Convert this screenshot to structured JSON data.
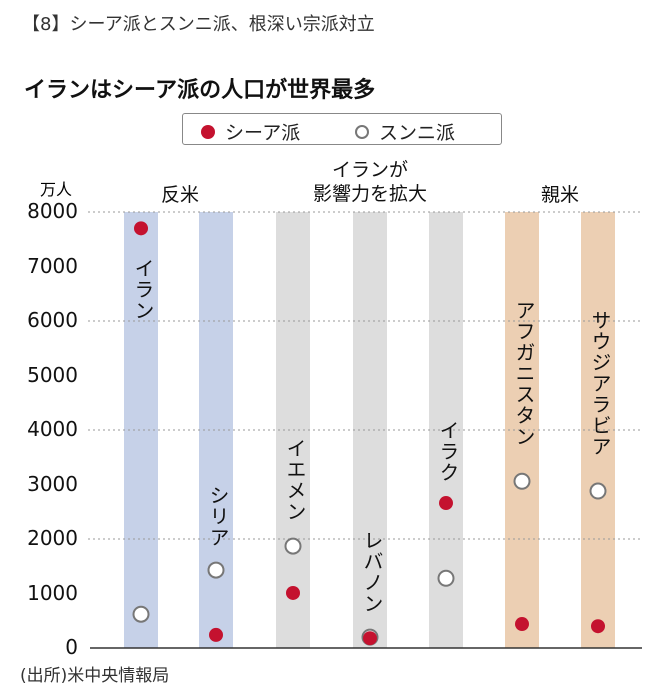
{
  "heading": "【8】シーア派とスンニ派、根深い宗派対立",
  "chart_data": {
    "type": "scatter",
    "title": "イランはシーア派の人口が世界最多",
    "ylabel": "万人",
    "ylim": [
      0,
      8000
    ],
    "yticks": [
      0,
      1000,
      2000,
      3000,
      4000,
      5000,
      6000,
      7000,
      8000
    ],
    "gridlines": [
      2000,
      4000,
      6000,
      8000
    ],
    "legend": {
      "position": "top-center",
      "entries": [
        {
          "name": "シーア派",
          "color": "#c4122f",
          "marker": "filled-circle"
        },
        {
          "name": "スンニ派",
          "color": "#777777",
          "marker": "open-circle"
        }
      ]
    },
    "groups": [
      {
        "label": "反米",
        "color": "#c6d1e8",
        "categories": [
          "イラン",
          "シリア"
        ]
      },
      {
        "label": "イランが影響力を拡大",
        "label_lines": [
          "イランが",
          "影響力を拡大"
        ],
        "color": "#dddddd",
        "categories": [
          "イエメン",
          "レバノン",
          "イラク"
        ]
      },
      {
        "label": "親米",
        "color": "#eccfb3",
        "categories": [
          "アフガニスタン",
          "サウジアラビア"
        ]
      }
    ],
    "categories": [
      "イラン",
      "シリア",
      "イエメン",
      "レバノン",
      "イラク",
      "アフガニスタン",
      "サウジアラビア"
    ],
    "series": [
      {
        "name": "シーア派",
        "values": [
          7700,
          240,
          1010,
          180,
          2660,
          440,
          400
        ]
      },
      {
        "name": "スンニ派",
        "values": [
          620,
          1430,
          1870,
          200,
          1280,
          3060,
          2880
        ]
      }
    ],
    "source": "(出所)米中央情報局"
  }
}
